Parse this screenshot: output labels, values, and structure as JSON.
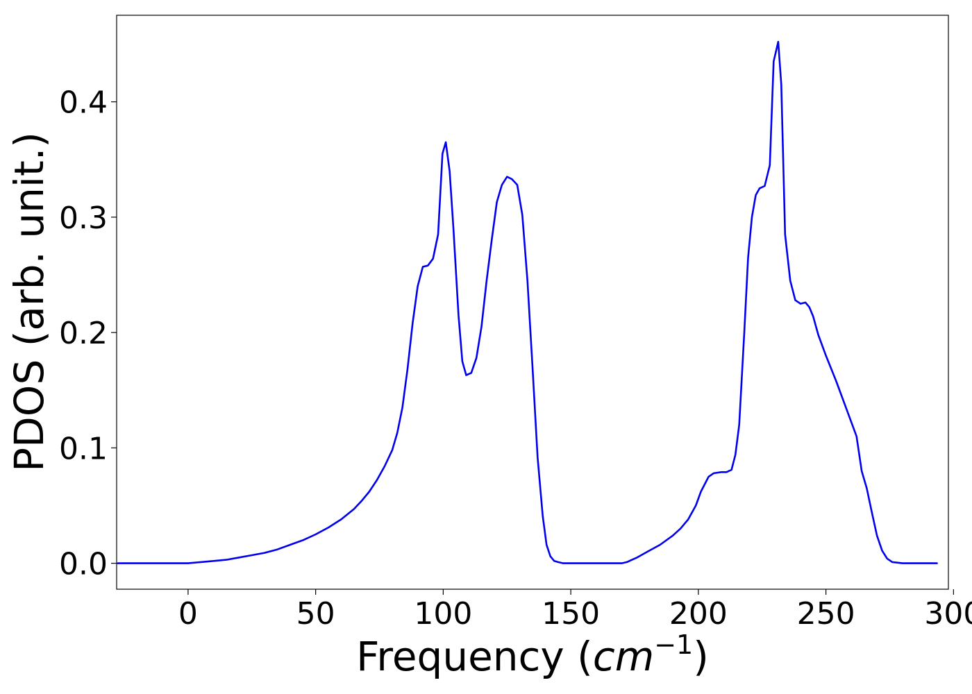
{
  "chart_data": {
    "type": "line",
    "title": "",
    "xlabel": "Frequency (",
    "xlabel_math_base": "cm",
    "xlabel_math_sup": "−1",
    "xlabel_suffix": ")",
    "ylabel": "PDOS (arb. unit.)",
    "xlim": [
      -28,
      298
    ],
    "ylim": [
      -0.0225,
      0.475
    ],
    "xticks": [
      0,
      50,
      100,
      150,
      200,
      250,
      300
    ],
    "xtick_labels": [
      "0",
      "50",
      "100",
      "150",
      "200",
      "250",
      "300"
    ],
    "yticks": [
      0.0,
      0.1,
      0.2,
      0.3,
      0.4
    ],
    "ytick_labels": [
      "0.0",
      "0.1",
      "0.2",
      "0.3",
      "0.4"
    ],
    "grid": false,
    "legend": "none",
    "series": [
      {
        "color": "#0000ee",
        "x": [
          -27.5,
          -20,
          -10,
          0,
          5,
          10,
          15,
          20,
          25,
          30,
          35,
          40,
          45,
          50,
          55,
          60,
          65,
          68,
          71,
          74,
          77,
          80,
          82,
          84,
          86,
          88,
          90,
          92,
          94,
          96,
          98,
          99.7,
          101,
          102.5,
          104,
          106,
          107.5,
          109,
          111,
          113,
          115,
          117,
          119,
          121,
          123,
          125,
          126.9,
          129,
          131,
          133,
          135,
          137,
          139,
          140.5,
          142,
          143.5,
          145,
          147,
          150,
          160,
          170,
          172,
          174,
          176,
          180,
          185,
          190,
          193,
          196,
          199,
          201,
          204,
          206,
          209,
          211,
          213,
          214.5,
          216,
          218,
          219.5,
          221,
          222.5,
          224,
          226,
          228,
          229.5,
          231.3,
          232.5,
          234,
          236,
          238,
          240,
          242,
          243.5,
          245,
          247,
          250,
          254,
          258,
          262,
          264,
          266,
          268,
          270,
          272,
          274,
          276,
          280,
          290,
          293.5
        ],
        "y": [
          0.0,
          0.0,
          0.0,
          0.0,
          0.001,
          0.002,
          0.003,
          0.005,
          0.007,
          0.009,
          0.012,
          0.016,
          0.02,
          0.025,
          0.031,
          0.038,
          0.047,
          0.054,
          0.062,
          0.072,
          0.084,
          0.098,
          0.113,
          0.135,
          0.168,
          0.208,
          0.24,
          0.257,
          0.258,
          0.264,
          0.285,
          0.355,
          0.365,
          0.34,
          0.29,
          0.215,
          0.175,
          0.163,
          0.165,
          0.178,
          0.205,
          0.245,
          0.28,
          0.313,
          0.328,
          0.335,
          0.333,
          0.328,
          0.302,
          0.245,
          0.17,
          0.092,
          0.041,
          0.016,
          0.006,
          0.002,
          0.001,
          0.0,
          0.0,
          0.0,
          0.0,
          0.001,
          0.003,
          0.005,
          0.01,
          0.016,
          0.024,
          0.03,
          0.038,
          0.05,
          0.062,
          0.075,
          0.078,
          0.079,
          0.079,
          0.081,
          0.094,
          0.12,
          0.2,
          0.265,
          0.3,
          0.319,
          0.325,
          0.327,
          0.345,
          0.435,
          0.452,
          0.415,
          0.285,
          0.245,
          0.228,
          0.225,
          0.226,
          0.222,
          0.214,
          0.198,
          0.18,
          0.158,
          0.134,
          0.11,
          0.08,
          0.065,
          0.044,
          0.024,
          0.011,
          0.004,
          0.001,
          0.0,
          0.0,
          0.0
        ]
      }
    ]
  }
}
